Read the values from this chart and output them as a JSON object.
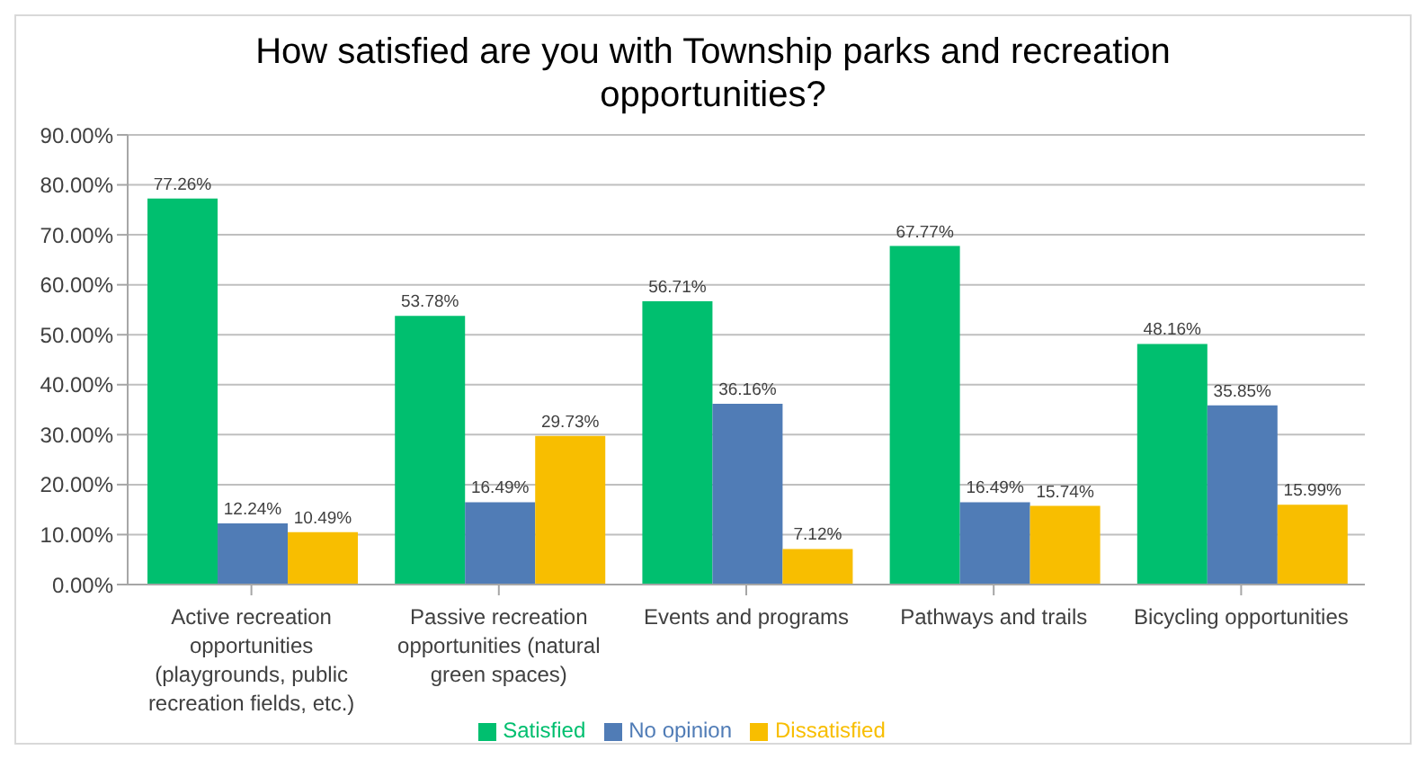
{
  "chart_data": {
    "type": "bar",
    "title": "How satisfied are you with Township parks and recreation opportunities?",
    "categories": [
      "Active recreation opportunities (playgrounds, public recreation fields, etc.)",
      "Passive recreation opportunities (natural green spaces)",
      "Events and programs",
      "Pathways and trails",
      "Bicycling opportunities"
    ],
    "series": [
      {
        "name": "Satisfied",
        "color": "#00bf6f",
        "values": [
          77.26,
          53.78,
          56.71,
          67.77,
          48.16
        ],
        "value_labels": [
          "77.26%",
          "53.78%",
          "56.71%",
          "67.77%",
          "48.16%"
        ]
      },
      {
        "name": "No opinion",
        "color": "#507cb6",
        "values": [
          12.24,
          16.49,
          36.16,
          16.49,
          35.85
        ],
        "value_labels": [
          "12.24%",
          "16.49%",
          "36.16%",
          "16.49%",
          "35.85%"
        ]
      },
      {
        "name": "Dissatisfied",
        "color": "#f8be00",
        "values": [
          10.49,
          29.73,
          7.12,
          15.74,
          15.99
        ],
        "value_labels": [
          "10.49%",
          "29.73%",
          "7.12%",
          "15.74%",
          "15.99%"
        ]
      }
    ],
    "ylim": [
      0,
      90
    ],
    "yticks": [
      {
        "value": 0,
        "label": "0.00%"
      },
      {
        "value": 10,
        "label": "10.00%"
      },
      {
        "value": 20,
        "label": "20.00%"
      },
      {
        "value": 30,
        "label": "30.00%"
      },
      {
        "value": 40,
        "label": "40.00%"
      },
      {
        "value": 50,
        "label": "50.00%"
      },
      {
        "value": 60,
        "label": "60.00%"
      },
      {
        "value": 70,
        "label": "70.00%"
      },
      {
        "value": 80,
        "label": "80.00%"
      },
      {
        "value": 90,
        "label": "90.00%"
      }
    ],
    "grid": "y",
    "legend": "bottom"
  }
}
